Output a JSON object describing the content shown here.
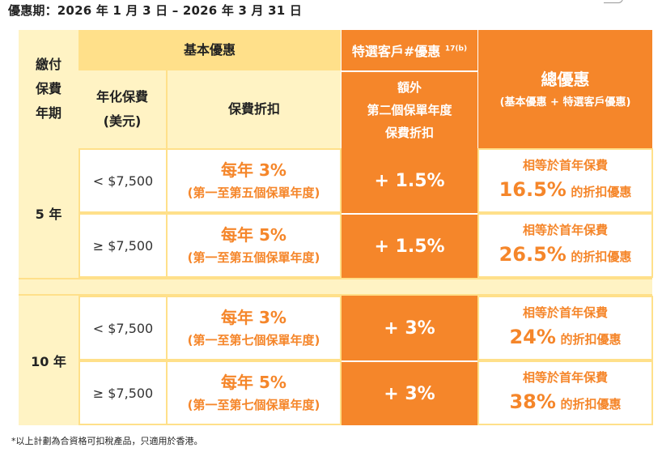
{
  "period": "優惠期：2026 年 1 月 3 日 – 2026 年 3 月 31 日",
  "headers": {
    "payment_term": [
      "繳付",
      "保費",
      "年期"
    ],
    "basic": "基本優惠",
    "premium": [
      "年化保費",
      "(美元)"
    ],
    "discount": "保費折扣",
    "select": "特選客戶#優惠",
    "select_sup": "17(b)",
    "extra": [
      "額外",
      "第二個保單年度",
      "保費折扣"
    ],
    "total": "總優惠",
    "total_sub": "(基本優惠 + 特選客戶優惠)"
  },
  "groups": [
    {
      "term": "5 年",
      "rows": [
        {
          "tier": "< $7,500",
          "discount": "每年 3%",
          "discount_note": "(第一至第五個保單年度)",
          "extra": "+ 1.5%",
          "total_prefix": "相等於首年保費",
          "total_pct": "16.5%",
          "total_suffix": "的折扣優惠"
        },
        {
          "tier": "≥ $7,500",
          "discount": "每年 5%",
          "discount_note": "(第一至第五個保單年度)",
          "extra": "+ 1.5%",
          "total_prefix": "相等於首年保費",
          "total_pct": "26.5%",
          "total_suffix": "的折扣優惠"
        }
      ]
    },
    {
      "term": "10 年",
      "rows": [
        {
          "tier": "< $7,500",
          "discount": "每年 3%",
          "discount_note": "(第一至第七個保單年度)",
          "extra": "+ 3%",
          "total_prefix": "相等於首年保費",
          "total_pct": "24%",
          "total_suffix": "的折扣優惠"
        },
        {
          "tier": "≥ $7,500",
          "discount": "每年 5%",
          "discount_note": "(第一至第七個保單年度)",
          "extra": "+ 3%",
          "total_prefix": "相等於首年保費",
          "total_pct": "38%",
          "total_suffix": "的折扣優惠"
        }
      ]
    }
  ],
  "footnote": "*以上計劃為合資格可扣稅產品，只適用於香港。",
  "colors": {
    "orange": "#f5862a",
    "light_yellow": "#fff3c4",
    "mid_yellow": "#ffe08a"
  }
}
